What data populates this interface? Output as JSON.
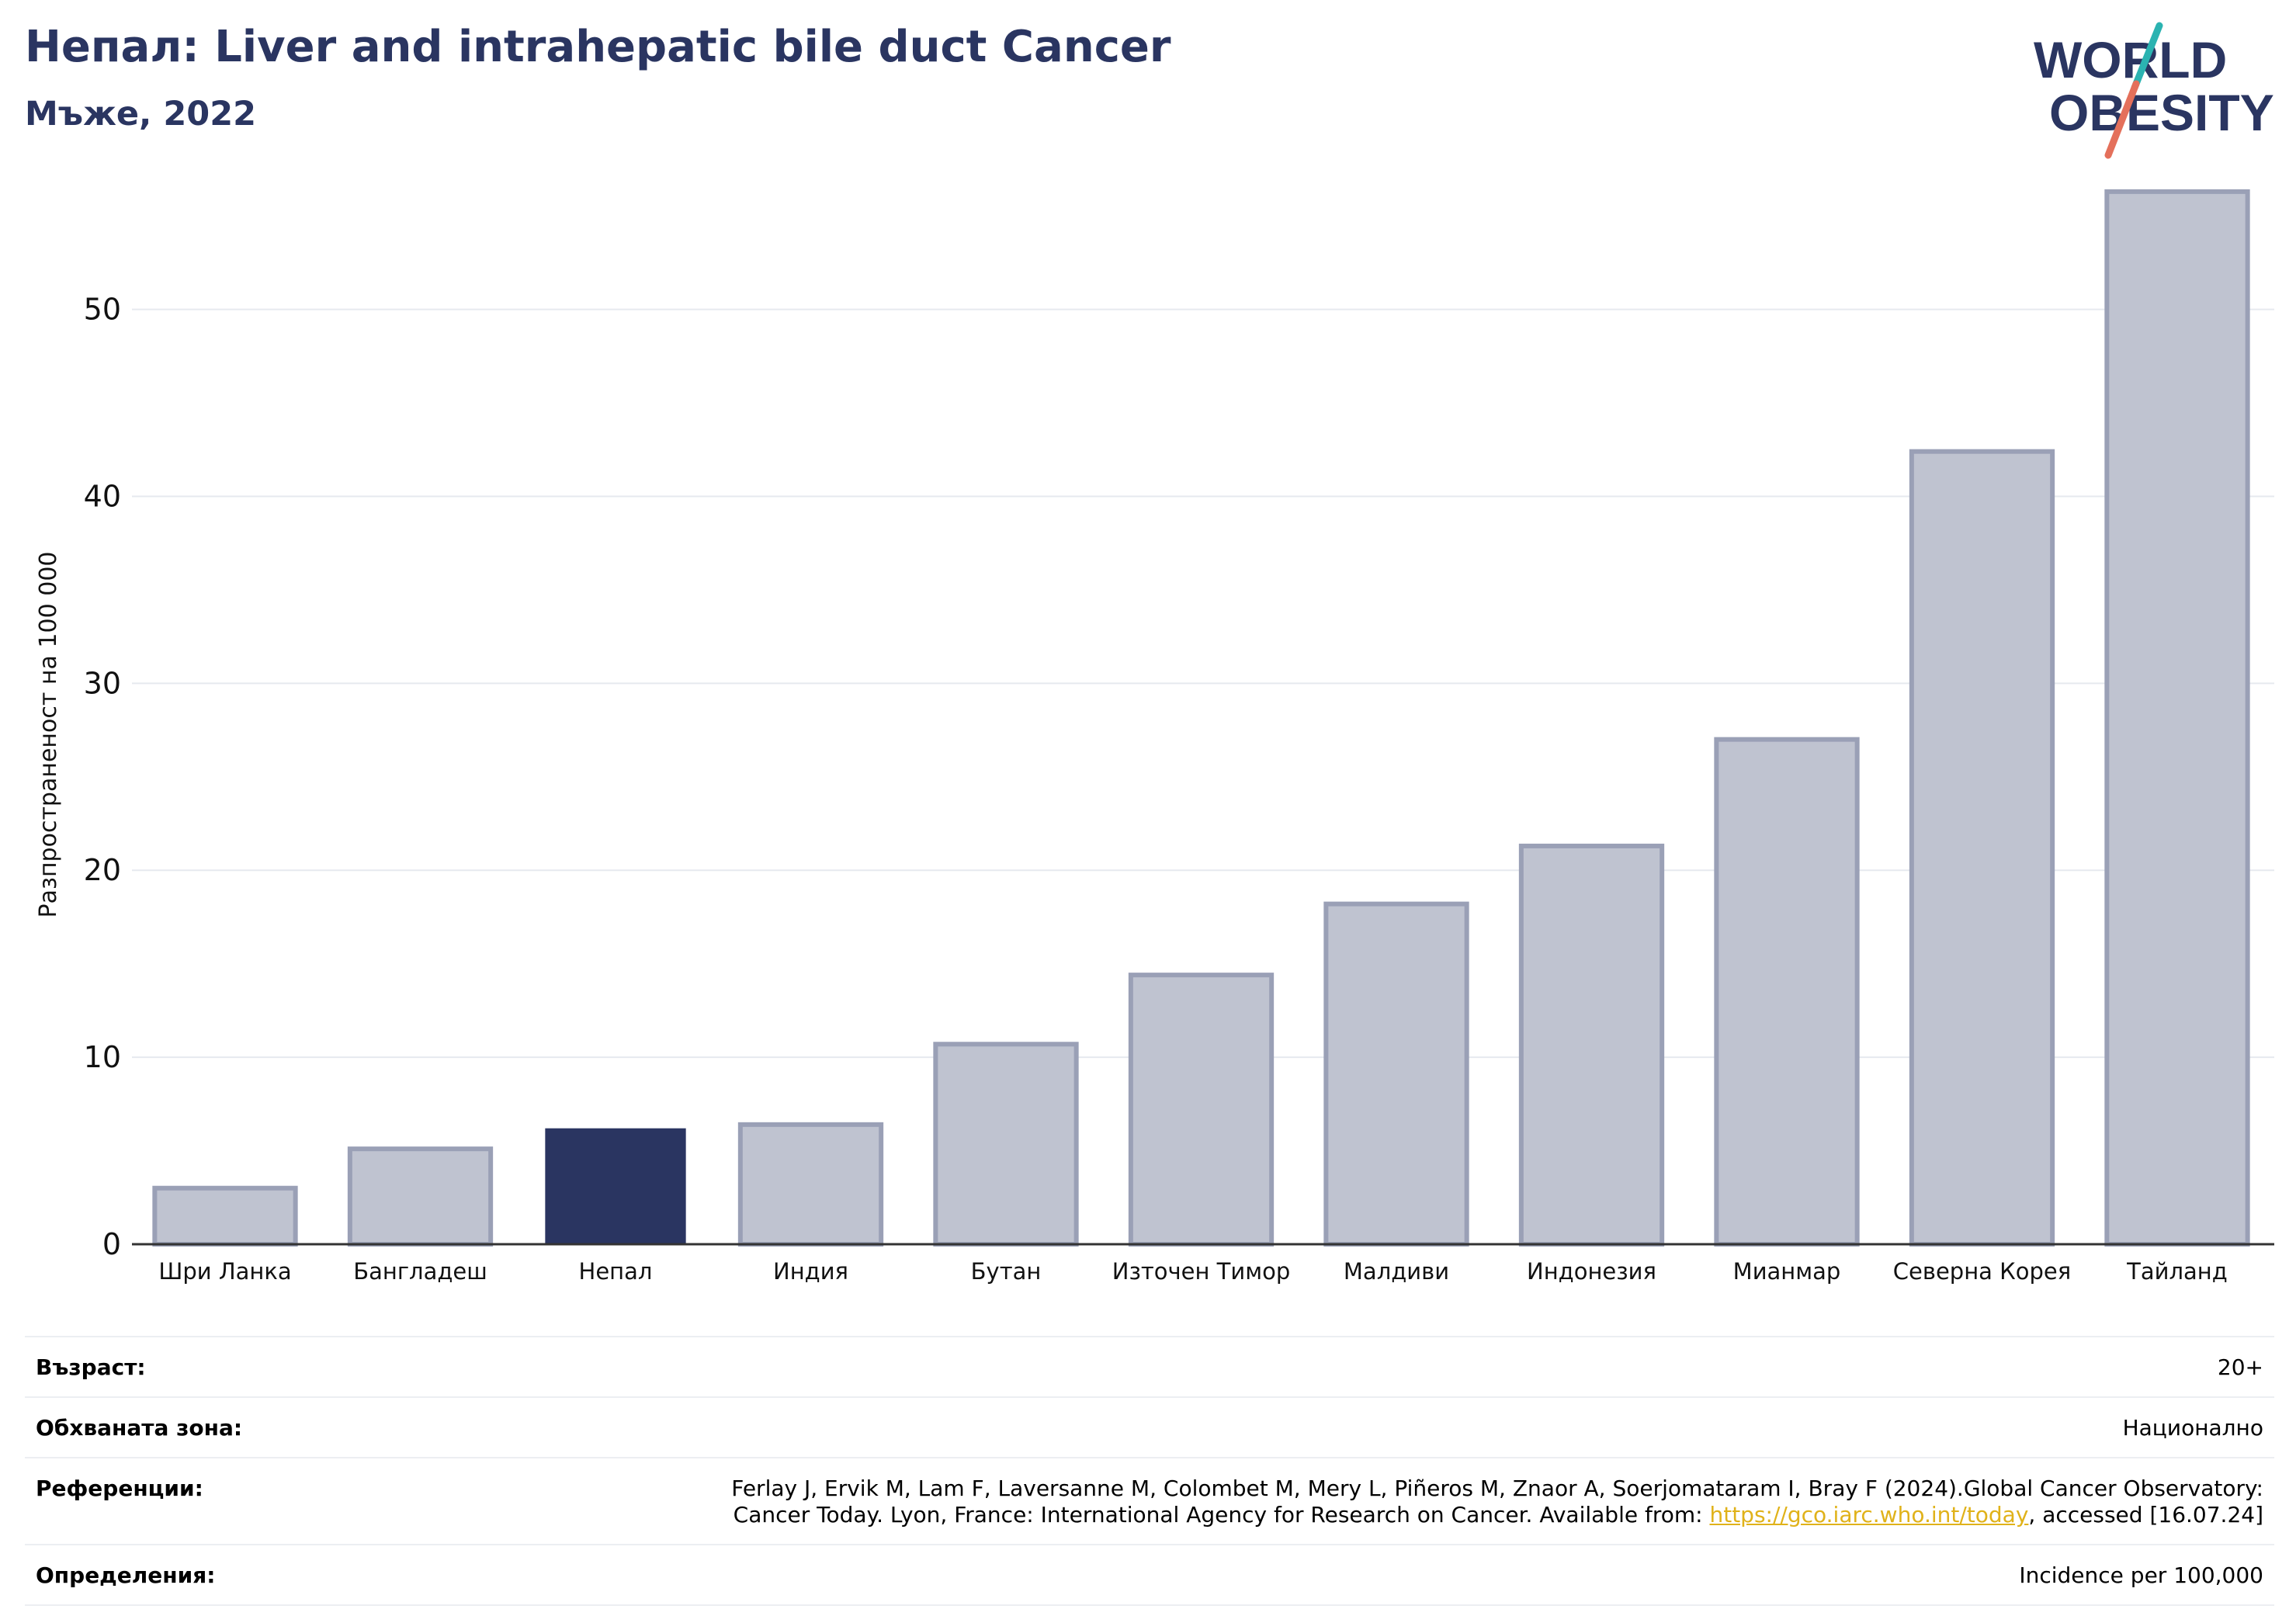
{
  "header": {
    "title": "Непал: Liver and intrahepatic bile duct Cancer",
    "subtitle": "Мъже, 2022"
  },
  "logo": {
    "line1": "WORLD",
    "line2": "OBESITY"
  },
  "colors": {
    "highlight": "#2a3561",
    "bar": "#bfc3d0",
    "bar_edge": "#9aa0b6",
    "grid": "#e6e9ef",
    "title": "#2a3561",
    "link": "#e0b21a"
  },
  "chart_data": {
    "type": "bar",
    "title": "Непал: Liver and intrahepatic bile duct Cancer",
    "subtitle": "Мъже, 2022",
    "ylabel": "Разпространеност  на 100 000",
    "xlabel": "",
    "categories": [
      "Шри Ланка",
      "Бангладеш",
      "Непал",
      "Индия",
      "Бутан",
      "Източен Тимор",
      "Малдиви",
      "Индонезия",
      "Мианмар",
      "Северна Корея",
      "Тайланд"
    ],
    "values": [
      3.0,
      5.1,
      6.2,
      6.4,
      10.7,
      14.4,
      18.2,
      21.3,
      27.0,
      42.4,
      56.3
    ],
    "highlight": "Непал",
    "ylim": [
      0,
      57
    ],
    "yticks": [
      0,
      10,
      20,
      30,
      40,
      50
    ],
    "grid": true
  },
  "info": {
    "age_label": "Възраст:",
    "age_value": "20+",
    "zone_label": "Обхваната зона:",
    "zone_value": "Национално",
    "ref_label": "Референции:",
    "ref_line1": "Ferlay J, Ervik M, Lam F, Laversanne M, Colombet M, Mery L, Piñeros M, Znaor A, Soerjomataram I, Bray F (2024).Global Cancer Observatory:",
    "ref_line2_pre": "Cancer Today. Lyon, France: International Agency for Research on Cancer. Available from: ",
    "ref_link": "https://gco.iarc.who.int/today",
    "ref_line2_post": ", accessed [16.07.24]",
    "def_label": "Определения:",
    "def_value": "Incidence per 100,000"
  }
}
